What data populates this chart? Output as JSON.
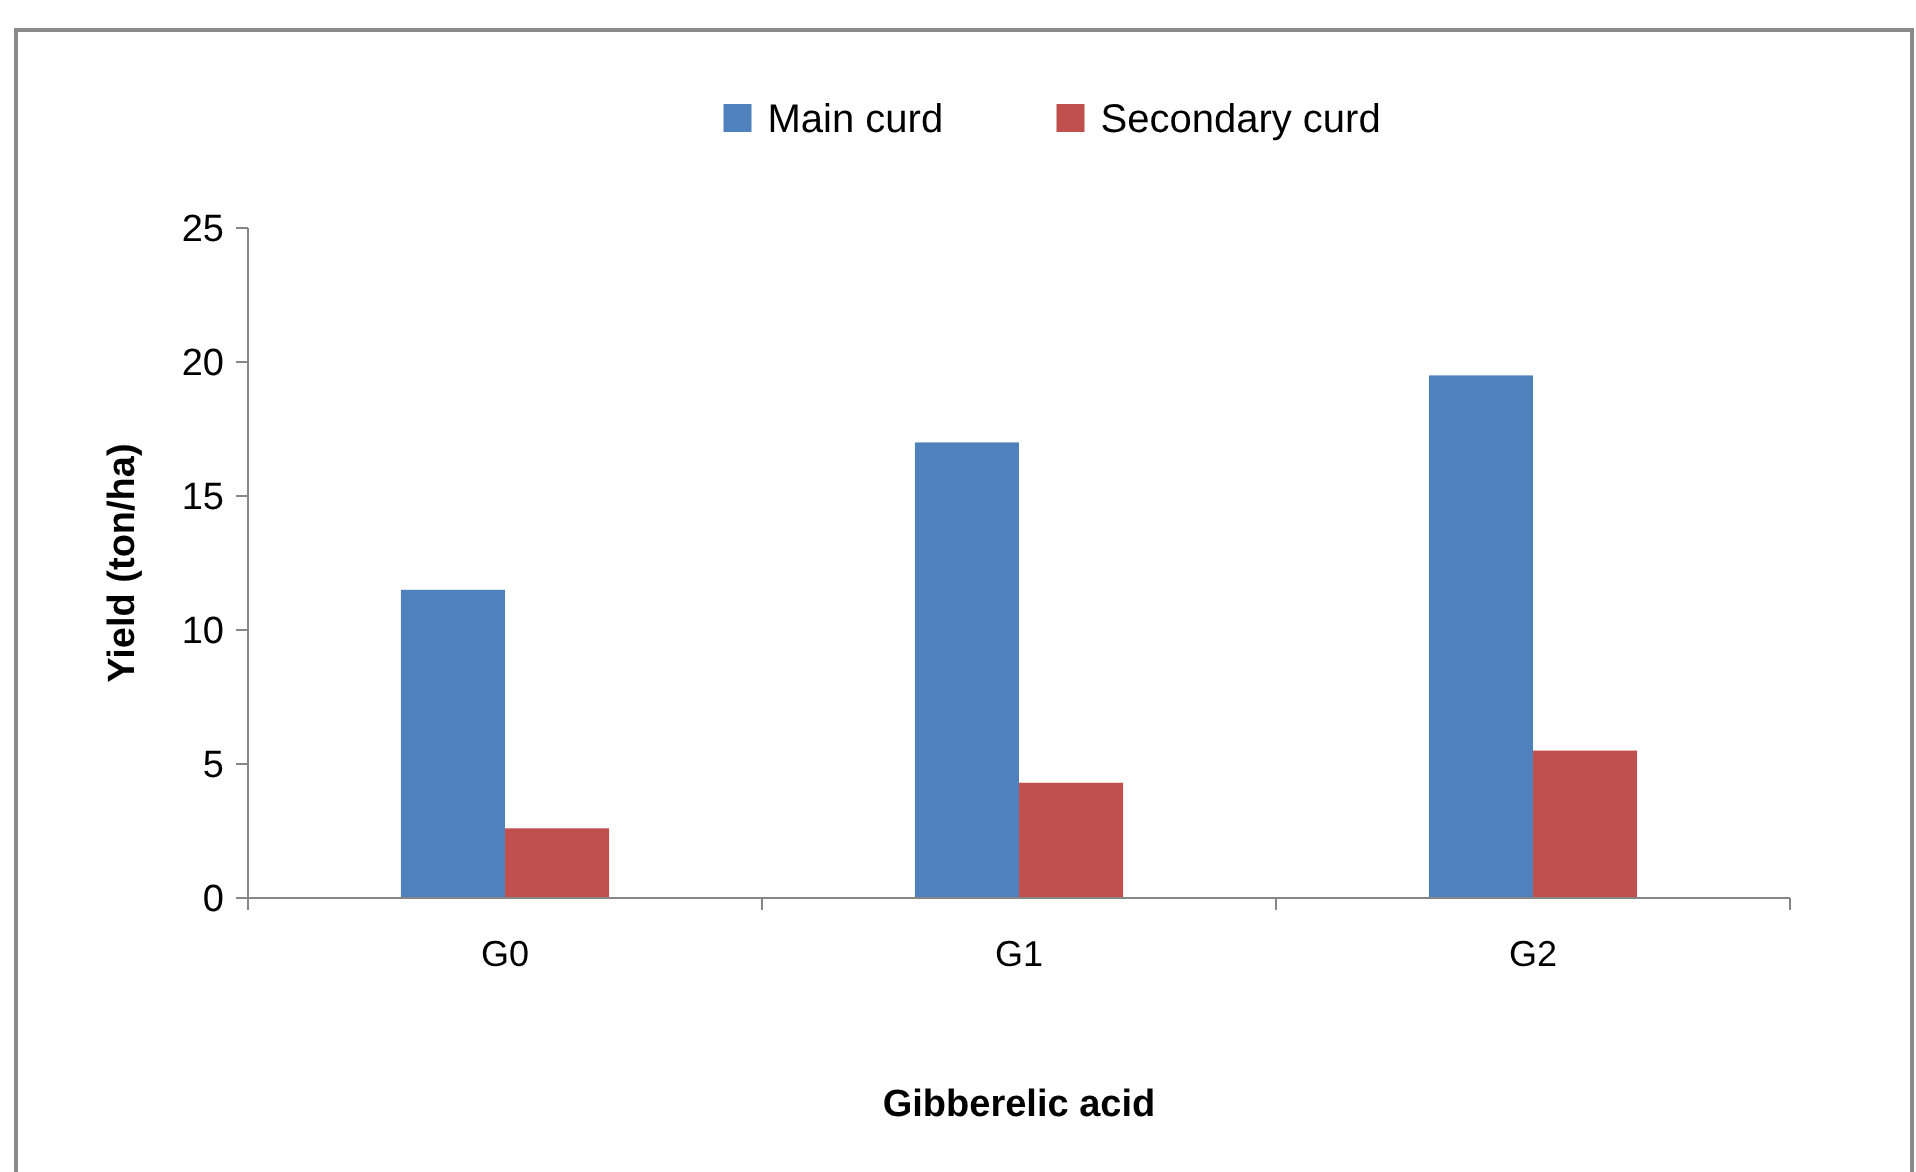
{
  "chart_data": {
    "type": "bar",
    "xlabel": "Gibberelic acid",
    "ylabel": "Yield (ton/ha)",
    "categories": [
      "G0",
      "G1",
      "G2"
    ],
    "series": [
      {
        "name": "Main curd",
        "color": "#4f81bd",
        "values": [
          11.5,
          17,
          19.5
        ]
      },
      {
        "name": "Secondary curd",
        "color": "#c0504d",
        "values": [
          2.6,
          4.3,
          5.5
        ]
      }
    ],
    "ylim": [
      0,
      25
    ],
    "yticks": [
      0,
      5,
      10,
      15,
      20,
      25
    ],
    "legend": "top",
    "grid": false
  }
}
